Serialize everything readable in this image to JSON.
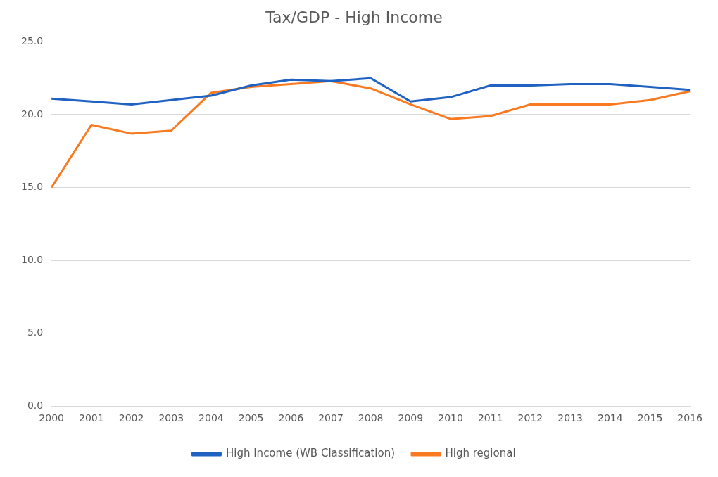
{
  "chart_data": {
    "type": "line",
    "title": "Tax/GDP - High Income",
    "categories": [
      "2000",
      "2001",
      "2002",
      "2003",
      "2004",
      "2005",
      "2006",
      "2007",
      "2008",
      "2009",
      "2010",
      "2011",
      "2012",
      "2013",
      "2014",
      "2015",
      "2016"
    ],
    "series": [
      {
        "name": "High Income (WB Classification)",
        "color": "#1f62c1",
        "values": [
          21.1,
          20.9,
          20.7,
          21.0,
          21.3,
          22.0,
          22.4,
          22.3,
          22.5,
          20.9,
          21.2,
          22.0,
          22.0,
          22.1,
          22.1,
          21.9,
          21.7
        ]
      },
      {
        "name": "High regional",
        "color": "#f97a21",
        "values": [
          15.0,
          19.3,
          18.7,
          18.9,
          21.5,
          21.9,
          22.1,
          22.3,
          21.8,
          20.7,
          19.7,
          19.9,
          20.7,
          20.7,
          20.7,
          21.0,
          21.6
        ]
      }
    ],
    "ylim": [
      0,
      25
    ],
    "yticks": [
      {
        "value": 0,
        "label": "0.0"
      },
      {
        "value": 5,
        "label": "5.0"
      },
      {
        "value": 10,
        "label": "10.0"
      },
      {
        "value": 15,
        "label": "15.0"
      },
      {
        "value": 20,
        "label": "20.0"
      },
      {
        "value": 25,
        "label": "25.0"
      }
    ],
    "grid": "y",
    "legend": "bottom",
    "marker": "none",
    "line_style": "solid"
  }
}
